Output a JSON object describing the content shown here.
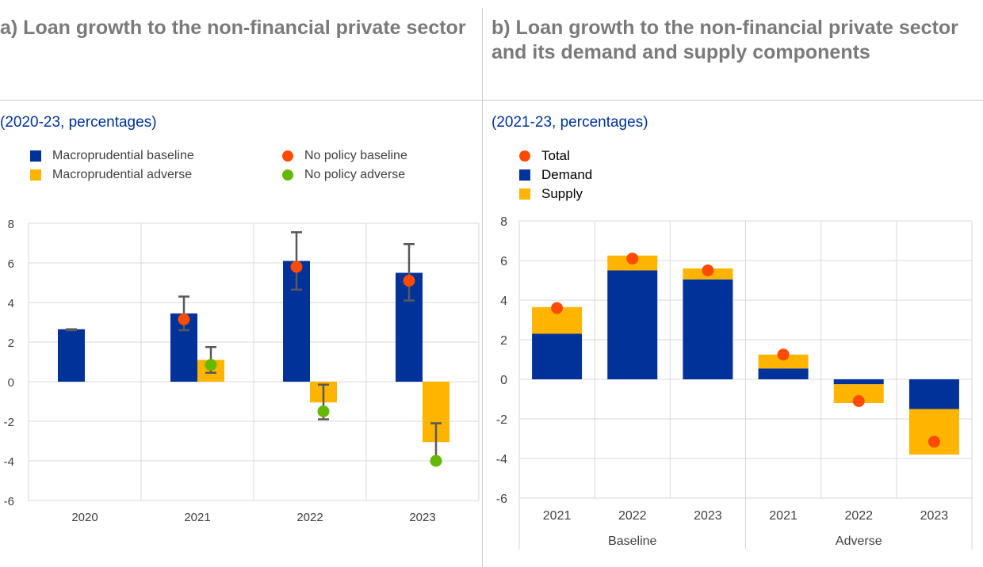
{
  "panel_a": {
    "title": "a) Loan growth to the non-financial private sector",
    "subtitle": "(2020-23, percentages)"
  },
  "panel_b": {
    "title": "b) Loan growth to the non-financial private sector and its demand and supply components",
    "subtitle": "(2021-23, percentages)"
  },
  "colors": {
    "dark_blue": "#003299",
    "yellow": "#ffb400",
    "orange_red": "#ff4b00",
    "green": "#65b800",
    "grid": "#d9d9d9",
    "whisker": "#595959"
  },
  "chart_data": [
    {
      "id": "panel_a",
      "type": "bar",
      "title": "a) Loan growth to the non-financial private sector",
      "subtitle": "(2020-23, percentages)",
      "categories": [
        "2020",
        "2021",
        "2022",
        "2023"
      ],
      "ylim": [
        -6,
        8
      ],
      "yticks": [
        -6,
        -4,
        -2,
        0,
        2,
        4,
        6,
        8
      ],
      "legend": [
        {
          "label": "Macroprudential baseline",
          "marker": "square",
          "color": "#003299"
        },
        {
          "label": "No policy baseline",
          "marker": "dot",
          "color": "#ff4b00"
        },
        {
          "label": "Macroprudential adverse",
          "marker": "square",
          "color": "#ffb400"
        },
        {
          "label": "No policy adverse",
          "marker": "dot",
          "color": "#65b800"
        }
      ],
      "series": [
        {
          "name": "Macroprudential baseline",
          "kind": "bar",
          "color": "#003299",
          "values": [
            2.65,
            3.45,
            6.1,
            5.5
          ]
        },
        {
          "name": "Macroprudential adverse",
          "kind": "bar",
          "color": "#ffb400",
          "values": [
            null,
            1.1,
            -1.05,
            -3.05
          ]
        },
        {
          "name": "No policy baseline",
          "kind": "dot",
          "color": "#ff4b00",
          "values": [
            null,
            3.15,
            5.8,
            5.1
          ]
        },
        {
          "name": "No policy adverse",
          "kind": "dot",
          "color": "#65b800",
          "values": [
            null,
            0.85,
            -1.5,
            -4.0
          ]
        }
      ],
      "ranges": {
        "baseline": [
          [
            2.6,
            2.65
          ],
          [
            2.6,
            4.3
          ],
          [
            4.65,
            7.55
          ],
          [
            4.1,
            6.95
          ]
        ],
        "adverse": [
          null,
          [
            0.45,
            1.75
          ],
          [
            -1.9,
            -0.15
          ],
          [
            -4.0,
            -2.1
          ]
        ]
      }
    },
    {
      "id": "panel_b",
      "type": "bar",
      "stacked": true,
      "title": "b) Loan growth to the non-financial private sector and its demand and supply components",
      "subtitle": "(2021-23, percentages)",
      "categories": [
        "2021",
        "2022",
        "2023",
        "2021",
        "2022",
        "2023"
      ],
      "groups": [
        {
          "label": "Baseline",
          "span": [
            0,
            2
          ]
        },
        {
          "label": "Adverse",
          "span": [
            3,
            5
          ]
        }
      ],
      "ylim": [
        -6,
        8
      ],
      "yticks": [
        -6,
        -4,
        -2,
        0,
        2,
        4,
        6,
        8
      ],
      "legend": [
        {
          "label": "Total",
          "marker": "dot",
          "color": "#ff4b00"
        },
        {
          "label": "Demand",
          "marker": "square",
          "color": "#003299"
        },
        {
          "label": "Supply",
          "marker": "square",
          "color": "#ffb400"
        }
      ],
      "series": [
        {
          "name": "Demand",
          "kind": "stack",
          "color": "#003299",
          "values": [
            2.3,
            5.5,
            5.05,
            0.55,
            -0.25,
            -1.5
          ]
        },
        {
          "name": "Supply",
          "kind": "stack",
          "color": "#ffb400",
          "values": [
            1.35,
            0.75,
            0.55,
            0.7,
            -0.95,
            -2.3
          ]
        },
        {
          "name": "Total",
          "kind": "dot",
          "color": "#ff4b00",
          "values": [
            3.6,
            6.1,
            5.5,
            1.25,
            -1.1,
            -3.15
          ]
        }
      ]
    }
  ]
}
